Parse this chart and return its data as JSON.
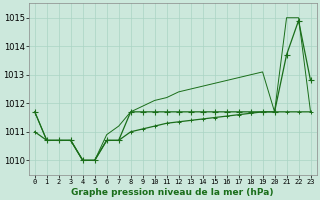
{
  "hours": [
    0,
    1,
    2,
    3,
    4,
    5,
    6,
    7,
    8,
    9,
    10,
    11,
    12,
    13,
    14,
    15,
    16,
    17,
    18,
    19,
    20,
    21,
    22,
    23
  ],
  "line_upper_thin": [
    1011.7,
    1010.7,
    1010.7,
    1010.7,
    1010.0,
    1010.0,
    1010.9,
    1011.2,
    1011.7,
    1011.9,
    1012.1,
    1012.2,
    1012.4,
    1012.5,
    1012.6,
    1012.7,
    1012.8,
    1012.9,
    1013.0,
    1013.1,
    1011.7,
    1015.0,
    1015.0,
    1011.7
  ],
  "line_flat_markers": [
    1011.7,
    1010.7,
    1010.7,
    1010.7,
    1010.0,
    1010.0,
    1010.7,
    1010.7,
    1011.7,
    1011.7,
    1011.7,
    1011.7,
    1011.7,
    1011.7,
    1011.7,
    1011.7,
    1011.7,
    1011.7,
    1011.7,
    1011.7,
    1011.7,
    1013.7,
    1014.9,
    1012.8
  ],
  "line_rising_markers": [
    1011.0,
    1010.7,
    1010.7,
    1010.7,
    1010.0,
    1010.0,
    1010.7,
    1010.7,
    1011.0,
    1011.1,
    1011.2,
    1011.3,
    1011.35,
    1011.4,
    1011.45,
    1011.5,
    1011.55,
    1011.6,
    1011.65,
    1011.7,
    1011.7,
    1011.7,
    1011.7,
    1011.7
  ],
  "ylim": [
    1009.5,
    1015.5
  ],
  "yticks": [
    1010,
    1011,
    1012,
    1013,
    1014,
    1015
  ],
  "xtick_labels": [
    "0",
    "1",
    "2",
    "3",
    "4",
    "5",
    "6",
    "7",
    "8",
    "9",
    "10",
    "11",
    "12",
    "13",
    "14",
    "15",
    "16",
    "17",
    "18",
    "19",
    "20",
    "21",
    "22",
    "23"
  ],
  "xlabel": "Graphe pression niveau de la mer (hPa)",
  "line_color": "#1a6e1a",
  "bg_color": "#cce8dc",
  "grid_color": "#aad4c4",
  "marker": "+",
  "markersize": 4,
  "linewidth": 0.9
}
